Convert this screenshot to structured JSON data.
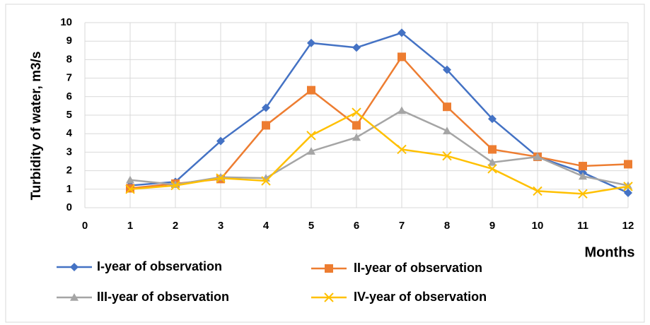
{
  "chart_data": {
    "type": "line",
    "x_label": "Months",
    "y_label": "Turbidity of water, m3/s",
    "x": [
      1,
      2,
      3,
      4,
      5,
      6,
      7,
      8,
      9,
      10,
      11,
      12
    ],
    "series": [
      {
        "name": "I-year of observation",
        "color": "#4472c4",
        "marker": "diamond",
        "values": [
          1.2,
          1.4,
          3.6,
          5.4,
          8.9,
          8.65,
          9.45,
          7.45,
          4.8,
          2.75,
          1.9,
          0.8
        ]
      },
      {
        "name": "II-year of observation",
        "color": "#ed7d31",
        "marker": "square",
        "values": [
          1.05,
          1.3,
          1.55,
          4.45,
          6.35,
          4.45,
          8.15,
          5.45,
          3.15,
          2.75,
          2.25,
          2.35
        ]
      },
      {
        "name": "III-year of observation",
        "color": "#a5a5a5",
        "marker": "triangle",
        "values": [
          1.5,
          1.25,
          1.65,
          1.6,
          3.05,
          3.8,
          5.25,
          4.15,
          2.45,
          2.75,
          1.7,
          1.2
        ]
      },
      {
        "name": "IV-year of observation",
        "color": "#ffc000",
        "marker": "x",
        "values": [
          1.0,
          1.2,
          1.6,
          1.45,
          3.9,
          5.15,
          3.15,
          2.8,
          2.1,
          0.9,
          0.75,
          1.15
        ]
      }
    ],
    "xlim": [
      0,
      12
    ],
    "xticks": [
      0,
      1,
      2,
      3,
      4,
      5,
      6,
      7,
      8,
      9,
      10,
      11,
      12
    ],
    "ylim": [
      0,
      10
    ],
    "yticks": [
      0,
      1,
      2,
      3,
      4,
      5,
      6,
      7,
      8,
      9,
      10
    ],
    "grid": true,
    "legend": "bottom"
  }
}
